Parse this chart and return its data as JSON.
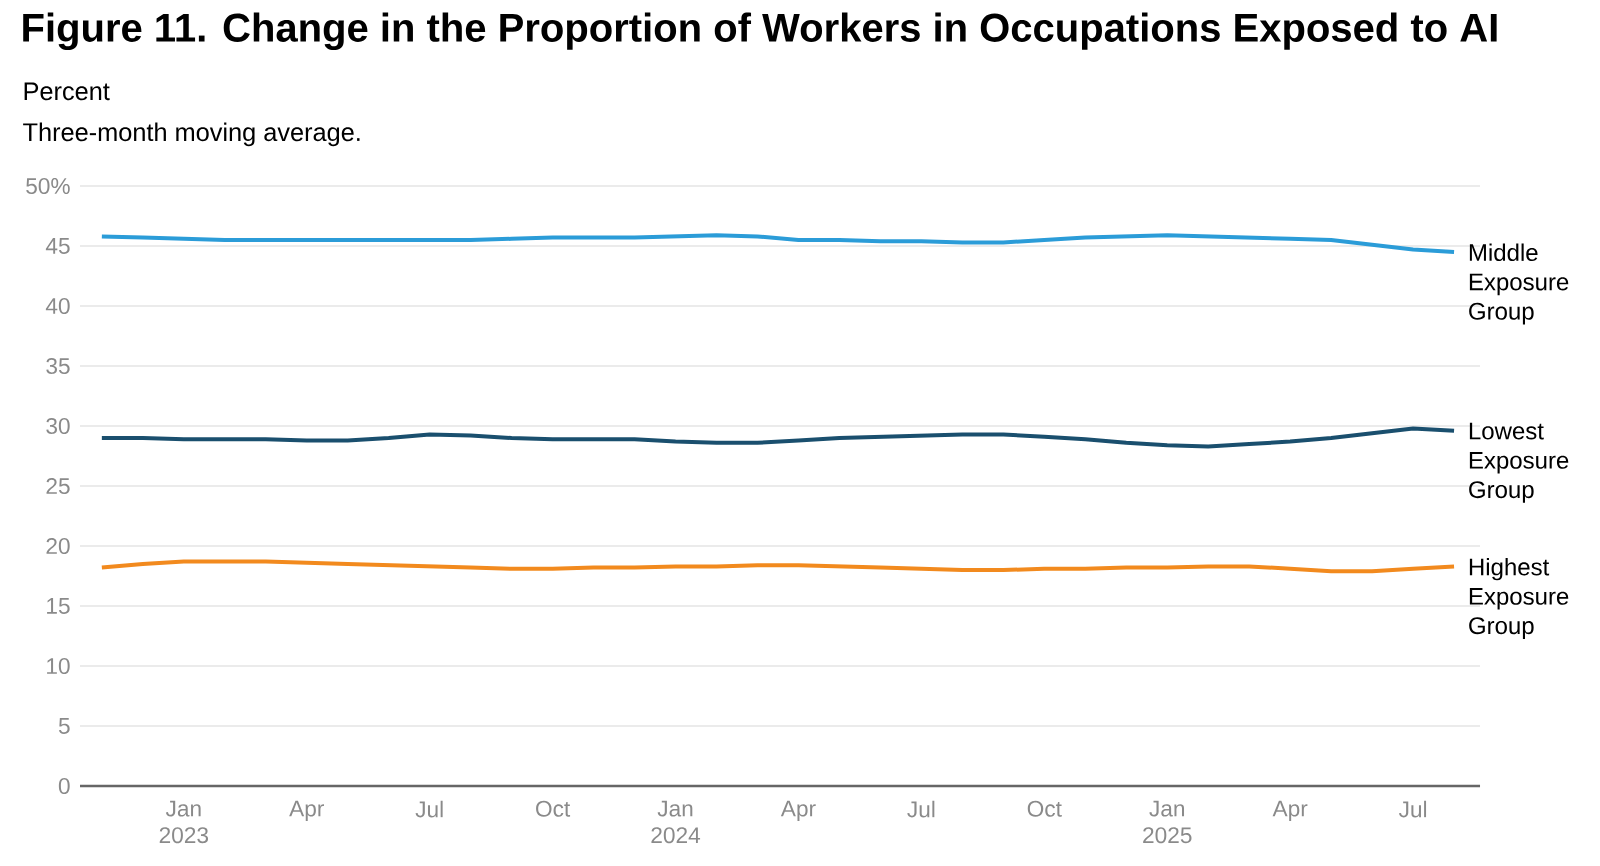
{
  "chart_data": {
    "type": "line",
    "title": "Figure 11. Change in the Proportion of Workers in Occupations Exposed to AI",
    "subtitle": "Three-month moving average.",
    "ylabel": "Percent",
    "x": [
      "2022-11",
      "2022-12",
      "2023-01",
      "2023-02",
      "2023-03",
      "2023-04",
      "2023-05",
      "2023-06",
      "2023-07",
      "2023-08",
      "2023-09",
      "2023-10",
      "2023-11",
      "2023-12",
      "2024-01",
      "2024-02",
      "2024-03",
      "2024-04",
      "2024-05",
      "2024-06",
      "2024-07",
      "2024-08",
      "2024-09",
      "2024-10",
      "2024-11",
      "2024-12",
      "2025-01",
      "2025-02",
      "2025-03",
      "2025-04",
      "2025-05",
      "2025-06",
      "2025-07",
      "2025-08"
    ],
    "series": [
      {
        "name": "Middle Exposure Group",
        "color": "#2b9cd8",
        "values": [
          45.8,
          45.7,
          45.6,
          45.5,
          45.5,
          45.5,
          45.5,
          45.5,
          45.5,
          45.5,
          45.6,
          45.7,
          45.7,
          45.7,
          45.8,
          45.9,
          45.8,
          45.5,
          45.5,
          45.4,
          45.4,
          45.3,
          45.3,
          45.5,
          45.7,
          45.8,
          45.9,
          45.8,
          45.7,
          45.6,
          45.5,
          45.1,
          44.7,
          44.5
        ]
      },
      {
        "name": "Lowest Exposure Group",
        "color": "#1a4f6e",
        "values": [
          29.0,
          29.0,
          28.9,
          28.9,
          28.9,
          28.8,
          28.8,
          29.0,
          29.3,
          29.2,
          29.0,
          28.9,
          28.9,
          28.9,
          28.7,
          28.6,
          28.6,
          28.8,
          29.0,
          29.1,
          29.2,
          29.3,
          29.3,
          29.1,
          28.9,
          28.6,
          28.4,
          28.3,
          28.5,
          28.7,
          29.0,
          29.4,
          29.8,
          29.6
        ]
      },
      {
        "name": "Highest Exposure Group",
        "color": "#f28a1e",
        "values": [
          18.2,
          18.5,
          18.7,
          18.7,
          18.7,
          18.6,
          18.5,
          18.4,
          18.3,
          18.2,
          18.1,
          18.1,
          18.2,
          18.2,
          18.3,
          18.3,
          18.4,
          18.4,
          18.3,
          18.2,
          18.1,
          18.0,
          18.0,
          18.1,
          18.1,
          18.2,
          18.2,
          18.3,
          18.3,
          18.1,
          17.9,
          17.9,
          18.1,
          18.3
        ]
      }
    ],
    "xlim": [
      "2022-10-15",
      "2025-08-20"
    ],
    "xticks": [
      {
        "value": "2023-01",
        "label": "Jan 2023"
      },
      {
        "value": "2023-04",
        "label": "Apr"
      },
      {
        "value": "2023-07",
        "label": "Jul"
      },
      {
        "value": "2023-10",
        "label": "Oct"
      },
      {
        "value": "2024-01",
        "label": "Jan 2024"
      },
      {
        "value": "2024-04",
        "label": "Apr"
      },
      {
        "value": "2024-07",
        "label": "Jul"
      },
      {
        "value": "2024-10",
        "label": "Oct"
      },
      {
        "value": "2025-01",
        "label": "Jan 2025"
      },
      {
        "value": "2025-04",
        "label": "Apr"
      },
      {
        "value": "2025-07",
        "label": "Jul"
      }
    ],
    "ylim": [
      0,
      50
    ],
    "yticks": [
      0,
      5,
      10,
      15,
      20,
      25,
      30,
      35,
      40,
      45,
      {
        "value": 50,
        "label": "50%"
      }
    ],
    "grid": "y",
    "legend": false
  }
}
